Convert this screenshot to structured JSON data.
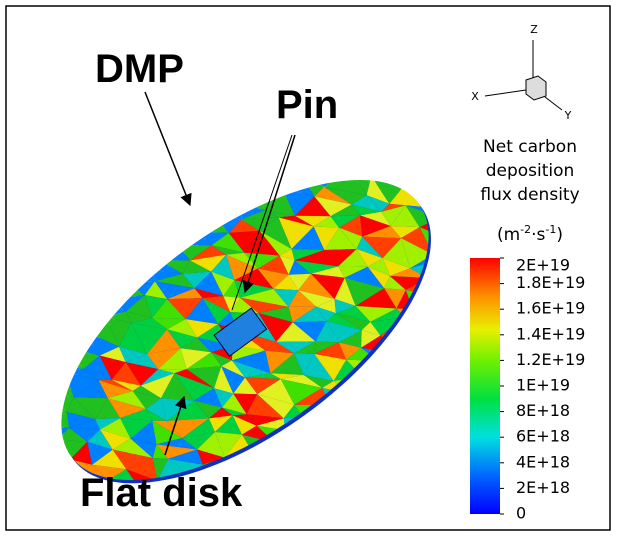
{
  "labels": {
    "dmp": "DMP",
    "pin": "Pin",
    "disk": "Flat disk"
  },
  "axes": {
    "z": "Z",
    "x": "X",
    "y": "Y"
  },
  "colorbar": {
    "title": [
      "Net carbon",
      "deposition",
      "flux density"
    ],
    "unit": [
      "(m",
      "-2",
      "·s",
      "-1",
      ")"
    ],
    "ticks": [
      {
        "value": 2e+19,
        "label": "2E+19"
      },
      {
        "value": 1.8e+19,
        "label": "1.8E+19"
      },
      {
        "value": 1.6e+19,
        "label": "1.6E+19"
      },
      {
        "value": 1.4e+19,
        "label": "1.4E+19"
      },
      {
        "value": 1.2e+19,
        "label": "1.2E+19"
      },
      {
        "value": 1e+19,
        "label": "1E+19"
      },
      {
        "value": 8e+18,
        "label": "8E+18"
      },
      {
        "value": 6e+18,
        "label": "6E+18"
      },
      {
        "value": 4e+18,
        "label": "4E+18"
      },
      {
        "value": 2e+18,
        "label": "2E+18"
      },
      0
    ],
    "lim": [
      0,
      2e+19
    ]
  }
}
